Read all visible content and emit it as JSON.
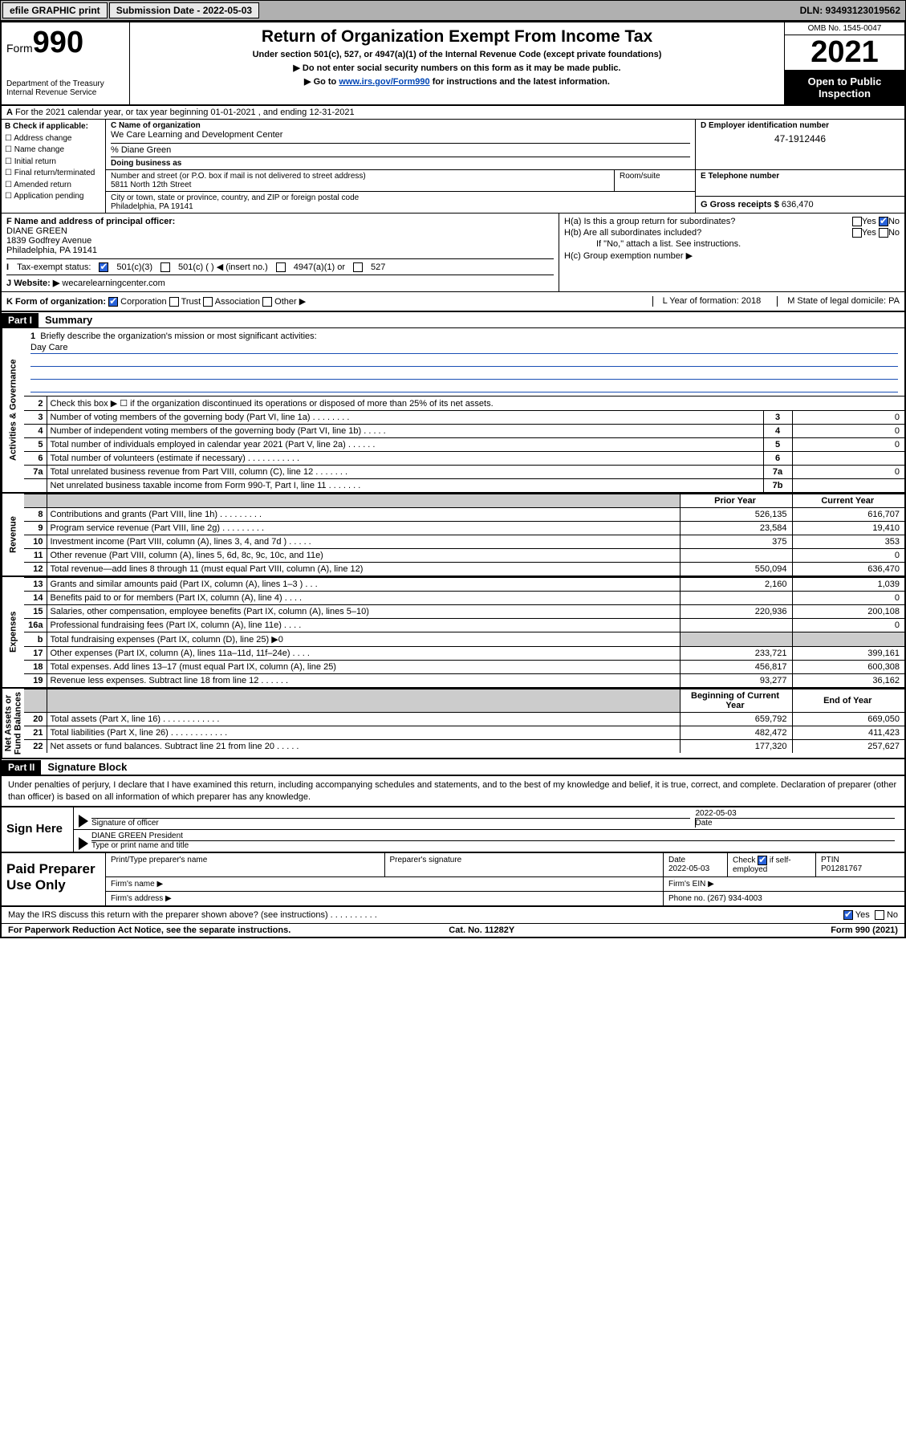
{
  "topbar": {
    "efile": "efile GRAPHIC print",
    "sub_label": "Submission Date - 2022-05-03",
    "dln": "DLN: 93493123019562"
  },
  "header": {
    "form_prefix": "Form",
    "form_no": "990",
    "dept": "Department of the Treasury\nInternal Revenue Service",
    "title": "Return of Organization Exempt From Income Tax",
    "sub1": "Under section 501(c), 527, or 4947(a)(1) of the Internal Revenue Code (except private foundations)",
    "sub2": "▶ Do not enter social security numbers on this form as it may be made public.",
    "sub3_pre": "▶ Go to ",
    "sub3_link": "www.irs.gov/Form990",
    "sub3_post": " for instructions and the latest information.",
    "omb": "OMB No. 1545-0047",
    "year": "2021",
    "open": "Open to Public Inspection"
  },
  "row_a": {
    "prefix": "A",
    "text": "For the 2021 calendar year, or tax year beginning 01-01-2021   , and ending 12-31-2021"
  },
  "col_b": {
    "label": "B Check if applicable:",
    "opts": [
      "Address change",
      "Name change",
      "Initial return",
      "Final return/terminated",
      "Amended return",
      "Application pending"
    ]
  },
  "c": {
    "name_lbl": "C Name of organization",
    "name": "We Care Learning and Development Center",
    "pct": "% Diane Green",
    "dba_lbl": "Doing business as",
    "addr_lbl": "Number and street (or P.O. box if mail is not delivered to street address)",
    "suite_lbl": "Room/suite",
    "addr": "5811 North 12th Street",
    "city_lbl": "City or town, state or province, country, and ZIP or foreign postal code",
    "city": "Philadelphia, PA  19141"
  },
  "d": {
    "lbl": "D Employer identification number",
    "val": "47-1912446"
  },
  "e": {
    "lbl": "E Telephone number"
  },
  "g": {
    "lbl": "G Gross receipts $",
    "val": "636,470"
  },
  "f": {
    "lbl": "F  Name and address of principal officer:",
    "name": "DIANE GREEN",
    "addr1": "1839 Godfrey Avenue",
    "addr2": "Philadelphia, PA  19141"
  },
  "h": {
    "a": "H(a)  Is this a group return for subordinates?",
    "b": "H(b)  Are all subordinates included?",
    "b2": "If \"No,\" attach a list. See instructions.",
    "c": "H(c)  Group exemption number ▶",
    "yes": "Yes",
    "no": "No"
  },
  "i": {
    "lbl": "Tax-exempt status:",
    "o1": "501(c)(3)",
    "o2": "501(c) (  ) ◀ (insert no.)",
    "o3": "4947(a)(1) or",
    "o4": "527"
  },
  "j": {
    "lbl": "Website: ▶",
    "val": "wecarelearningcenter.com"
  },
  "k": {
    "lbl": "K Form of organization:",
    "o1": "Corporation",
    "o2": "Trust",
    "o3": "Association",
    "o4": "Other ▶",
    "l": "L Year of formation: 2018",
    "m": "M State of legal domicile: PA"
  },
  "part1": {
    "hdr": "Part I",
    "title": "Summary"
  },
  "vtabs": {
    "gov": "Activities & Governance",
    "rev": "Revenue",
    "exp": "Expenses",
    "net": "Net Assets or\nFund Balances"
  },
  "mission": {
    "lbl": "Briefly describe the organization's mission or most significant activities:",
    "val": "Day Care"
  },
  "lines_gov": [
    {
      "n": "2",
      "t": "Check this box ▶ ☐  if the organization discontinued its operations or disposed of more than 25% of its net assets."
    },
    {
      "n": "3",
      "t": "Number of voting members of the governing body (Part VI, line 1a)   .    .    .    .    .    .    .    .",
      "nb": "3",
      "v": "0"
    },
    {
      "n": "4",
      "t": "Number of independent voting members of the governing body (Part VI, line 1b)    .    .    .    .    .",
      "nb": "4",
      "v": "0"
    },
    {
      "n": "5",
      "t": "Total number of individuals employed in calendar year 2021 (Part V, line 2a)    .    .    .    .    .    .",
      "nb": "5",
      "v": "0"
    },
    {
      "n": "6",
      "t": "Total number of volunteers (estimate if necessary)   .    .    .    .    .    .    .    .    .    .    .",
      "nb": "6",
      "v": ""
    },
    {
      "n": "7a",
      "t": "Total unrelated business revenue from Part VIII, column (C), line 12    .    .    .    .    .    .    .",
      "nb": "7a",
      "v": "0"
    },
    {
      "n": "",
      "t": "Net unrelated business taxable income from Form 990-T, Part I, line 11   .    .    .    .    .    .    .",
      "nb": "7b",
      "v": ""
    }
  ],
  "col_headers": {
    "prior": "Prior Year",
    "curr": "Current Year",
    "beg": "Beginning of Current Year",
    "end": "End of Year"
  },
  "lines_rev": [
    {
      "n": "8",
      "t": "Contributions and grants (Part VIII, line 1h)    .    .    .    .    .    .    .    .    .",
      "p": "526,135",
      "c": "616,707"
    },
    {
      "n": "9",
      "t": "Program service revenue (Part VIII, line 2g)   .    .    .    .    .    .    .    .    .",
      "p": "23,584",
      "c": "19,410"
    },
    {
      "n": "10",
      "t": "Investment income (Part VIII, column (A), lines 3, 4, and 7d )    .    .    .    .    .",
      "p": "375",
      "c": "353"
    },
    {
      "n": "11",
      "t": "Other revenue (Part VIII, column (A), lines 5, 6d, 8c, 9c, 10c, and 11e)",
      "p": "",
      "c": "0"
    },
    {
      "n": "12",
      "t": "Total revenue—add lines 8 through 11 (must equal Part VIII, column (A), line 12)",
      "p": "550,094",
      "c": "636,470"
    }
  ],
  "lines_exp": [
    {
      "n": "13",
      "t": "Grants and similar amounts paid (Part IX, column (A), lines 1–3 )    .    .    .",
      "p": "2,160",
      "c": "1,039"
    },
    {
      "n": "14",
      "t": "Benefits paid to or for members (Part IX, column (A), line 4)    .    .    .    .",
      "p": "",
      "c": "0"
    },
    {
      "n": "15",
      "t": "Salaries, other compensation, employee benefits (Part IX, column (A), lines 5–10)",
      "p": "220,936",
      "c": "200,108"
    },
    {
      "n": "16a",
      "t": "Professional fundraising fees (Part IX, column (A), line 11e)    .    .    .    .",
      "p": "",
      "c": "0"
    },
    {
      "n": "b",
      "t": "Total fundraising expenses (Part IX, column (D), line 25) ▶0",
      "shade": true
    },
    {
      "n": "17",
      "t": "Other expenses (Part IX, column (A), lines 11a–11d, 11f–24e)    .    .    .    .",
      "p": "233,721",
      "c": "399,161"
    },
    {
      "n": "18",
      "t": "Total expenses. Add lines 13–17 (must equal Part IX, column (A), line 25)",
      "p": "456,817",
      "c": "600,308"
    },
    {
      "n": "19",
      "t": "Revenue less expenses. Subtract line 18 from line 12    .    .    .    .    .    .",
      "p": "93,277",
      "c": "36,162"
    }
  ],
  "lines_net": [
    {
      "n": "20",
      "t": "Total assets (Part X, line 16)    .    .    .    .    .    .    .    .    .    .    .    .",
      "p": "659,792",
      "c": "669,050"
    },
    {
      "n": "21",
      "t": "Total liabilities (Part X, line 26)    .    .    .    .    .    .    .    .    .    .    .    .",
      "p": "482,472",
      "c": "411,423"
    },
    {
      "n": "22",
      "t": "Net assets or fund balances. Subtract line 21 from line 20    .    .    .    .    .",
      "p": "177,320",
      "c": "257,627"
    }
  ],
  "part2": {
    "hdr": "Part II",
    "title": "Signature Block"
  },
  "decl": "Under penalties of perjury, I declare that I have examined this return, including accompanying schedules and statements, and to the best of my knowledge and belief, it is true, correct, and complete. Declaration of preparer (other than officer) is based on all information of which preparer has any knowledge.",
  "sign": {
    "here": "Sign Here",
    "sig_lbl": "Signature of officer",
    "date": "2022-05-03",
    "date_lbl": "Date",
    "name": "DIANE GREEN President",
    "name_lbl": "Type or print name and title"
  },
  "prep": {
    "title": "Paid Preparer Use Only",
    "h1": "Print/Type preparer's name",
    "h2": "Preparer's signature",
    "h3": "Date",
    "h3v": "2022-05-03",
    "h4": "Check ☑ if self-employed",
    "h5": "PTIN",
    "h5v": "P01281767",
    "firm_name": "Firm's name    ▶",
    "firm_ein": "Firm's EIN ▶",
    "firm_addr": "Firm's address ▶",
    "phone": "Phone no. (267) 934-4003"
  },
  "footer": {
    "q": "May the IRS discuss this return with the preparer shown above? (see instructions)   .    .    .    .    .    .    .    .    .    .",
    "yes": "Yes",
    "no": "No",
    "pra": "For Paperwork Reduction Act Notice, see the separate instructions.",
    "cat": "Cat. No. 11282Y",
    "form": "Form 990 (2021)"
  }
}
